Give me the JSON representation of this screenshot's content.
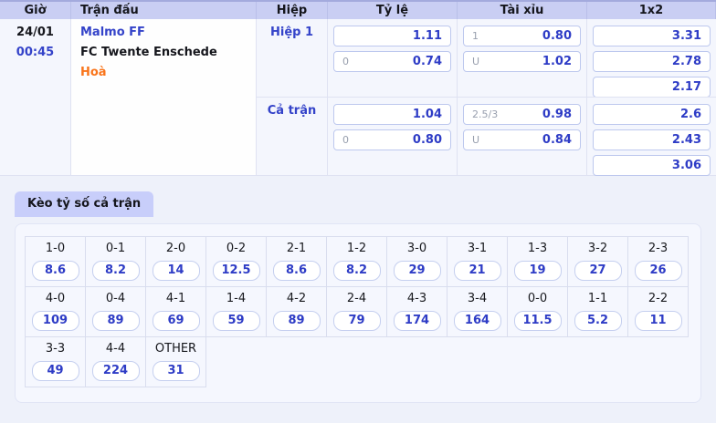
{
  "colors": {
    "accent_blue": "#3443c9",
    "odds_blue": "#2e3cc6",
    "result_orange": "#f9741a",
    "header_bg": "#c9cef3",
    "tab_bg": "#c8cefa",
    "page_bg": "#eef1fa"
  },
  "odds_table": {
    "headers": {
      "time": "Giờ",
      "match": "Trận đấu",
      "period": "Hiệp",
      "handicap": "Tỷ lệ",
      "over_under": "Tài xỉu",
      "one_x_two": "1x2"
    },
    "match": {
      "date": "24/01",
      "time": "00:45",
      "home": "Malmo FF",
      "away": "FC Twente Enschede",
      "result": "Hoà"
    },
    "sections": [
      {
        "period": "Hiệp 1",
        "handicap": [
          {
            "line": "",
            "odds": "1.11"
          },
          {
            "line": "0",
            "odds": "0.74"
          }
        ],
        "over_under": [
          {
            "line": "1",
            "odds": "0.80"
          },
          {
            "line": "U",
            "odds": "1.02"
          }
        ],
        "one_x_two": [
          "3.31",
          "2.78",
          "2.17"
        ]
      },
      {
        "period": "Cả trận",
        "handicap": [
          {
            "line": "",
            "odds": "1.04"
          },
          {
            "line": "0",
            "odds": "0.80"
          }
        ],
        "over_under": [
          {
            "line": "2.5/3",
            "odds": "0.98"
          },
          {
            "line": "U",
            "odds": "0.84"
          }
        ],
        "one_x_two": [
          "2.6",
          "2.43",
          "3.06"
        ]
      }
    ]
  },
  "score_section": {
    "tab_label": "Kèo tỷ số cả trận",
    "rows": [
      {
        "cells": [
          {
            "score": "1-0",
            "odds": "8.6"
          },
          {
            "score": "0-1",
            "odds": "8.2"
          },
          {
            "score": "2-0",
            "odds": "14"
          },
          {
            "score": "0-2",
            "odds": "12.5"
          },
          {
            "score": "2-1",
            "odds": "8.6"
          },
          {
            "score": "1-2",
            "odds": "8.2"
          },
          {
            "score": "3-0",
            "odds": "29"
          },
          {
            "score": "3-1",
            "odds": "21"
          },
          {
            "score": "1-3",
            "odds": "19"
          },
          {
            "score": "3-2",
            "odds": "27"
          },
          {
            "score": "2-3",
            "odds": "26"
          }
        ]
      },
      {
        "cells": [
          {
            "score": "4-0",
            "odds": "109"
          },
          {
            "score": "0-4",
            "odds": "89"
          },
          {
            "score": "4-1",
            "odds": "69"
          },
          {
            "score": "1-4",
            "odds": "59"
          },
          {
            "score": "4-2",
            "odds": "89"
          },
          {
            "score": "2-4",
            "odds": "79"
          },
          {
            "score": "4-3",
            "odds": "174"
          },
          {
            "score": "3-4",
            "odds": "164"
          },
          {
            "score": "0-0",
            "odds": "11.5"
          },
          {
            "score": "1-1",
            "odds": "5.2"
          },
          {
            "score": "2-2",
            "odds": "11"
          }
        ]
      },
      {
        "cells": [
          {
            "score": "3-3",
            "odds": "49"
          },
          {
            "score": "4-4",
            "odds": "224"
          },
          {
            "score": "OTHER",
            "odds": "31"
          }
        ]
      }
    ]
  }
}
